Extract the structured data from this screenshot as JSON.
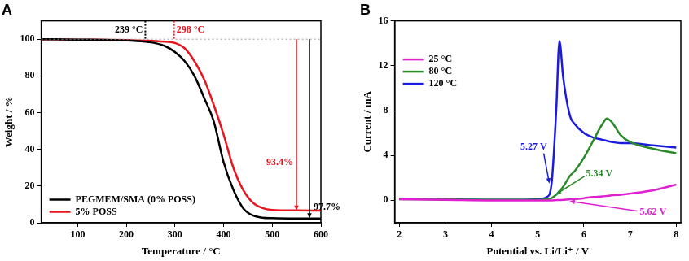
{
  "chart_data": [
    {
      "type": "line",
      "title": "A",
      "x_label": "Temperature / °C",
      "y_label": "Weight / %",
      "xlim": [
        25,
        600
      ],
      "xticks": [
        100,
        200,
        300,
        400,
        500,
        600
      ],
      "ylim": [
        0,
        110
      ],
      "yticks": [
        0,
        20,
        40,
        60,
        80,
        100
      ],
      "grid": false,
      "legend": "lower left",
      "x": [
        25,
        100,
        200,
        239,
        260,
        280,
        300,
        320,
        340,
        360,
        380,
        400,
        420,
        440,
        460,
        480,
        500,
        550,
        600
      ],
      "series": [
        {
          "name": "PEGMEM/SMA (0% POSS)",
          "color": "#000000",
          "values": [
            100,
            99.8,
            99.3,
            98.6,
            97.8,
            96.2,
            93,
            88,
            80,
            68,
            55,
            33,
            18,
            8,
            4,
            2.8,
            2.5,
            2.3,
            2.3
          ]
        },
        {
          "name": "5% POSS",
          "color": "#e8141e",
          "values": [
            100,
            99.8,
            99.5,
            99.2,
            99,
            98.6,
            97.9,
            95,
            88,
            78,
            64,
            48,
            30,
            18,
            11,
            8,
            7,
            6.7,
            6.6
          ]
        }
      ],
      "annotations": [
        {
          "text": "239 °C",
          "x": 239,
          "series": "PEGMEM/SMA (0% POSS)"
        },
        {
          "text": "298 °C",
          "x": 298,
          "series": "5% POSS"
        },
        {
          "text": "93.4%",
          "value": 93.4,
          "series": "5% POSS"
        },
        {
          "text": "97.7%",
          "value": 97.7,
          "series": "PEGMEM/SMA (0% POSS)"
        }
      ]
    },
    {
      "type": "line",
      "title": "B",
      "x_label": "Potential vs. Li/Li⁺ / V",
      "y_label": "Current / mA",
      "xlim": [
        1.9,
        8.1
      ],
      "xticks": [
        2,
        3,
        4,
        5,
        6,
        7,
        8
      ],
      "ylim": [
        -2,
        16
      ],
      "yticks": [
        0,
        4,
        8,
        12,
        16
      ],
      "grid": false,
      "legend": "upper left",
      "x": [
        2,
        3,
        4,
        4.5,
        5,
        5.2,
        5.3,
        5.4,
        5.47,
        5.55,
        5.7,
        5.8,
        6,
        6.2,
        6.4,
        6.5,
        6.6,
        6.8,
        7,
        7.5,
        8
      ],
      "series": [
        {
          "name": "25 °C",
          "color": "#e020d0",
          "values": [
            0.1,
            0.05,
            0,
            0,
            0,
            0,
            0,
            0.02,
            0.03,
            0.05,
            0.1,
            0.12,
            0.2,
            0.3,
            0.35,
            0.4,
            0.45,
            0.5,
            0.6,
            0.9,
            1.4
          ]
        },
        {
          "name": "80 °C",
          "color": "#2a8a2a",
          "values": [
            0.1,
            0.08,
            0.05,
            0.05,
            0.05,
            0.1,
            0.2,
            0.5,
            0.8,
            1.2,
            2.2,
            2.6,
            3.8,
            5.3,
            6.8,
            7.3,
            7,
            5.8,
            5.2,
            4.6,
            4.2
          ]
        },
        {
          "name": "120 °C",
          "color": "#1a1ae0",
          "values": [
            0.15,
            0.1,
            0.05,
            0.05,
            0.1,
            0.3,
            1.5,
            8,
            14.2,
            11,
            7.5,
            6.8,
            6,
            5.6,
            5.4,
            5.3,
            5.2,
            5.1,
            5.1,
            4.9,
            4.7
          ]
        }
      ],
      "annotations": [
        {
          "text": "5.27 V",
          "x": 5.27,
          "series": "120 °C"
        },
        {
          "text": "5.34 V",
          "x": 5.34,
          "series": "80 °C"
        },
        {
          "text": "5.62 V",
          "x": 5.62,
          "series": "25 °C"
        }
      ]
    }
  ]
}
